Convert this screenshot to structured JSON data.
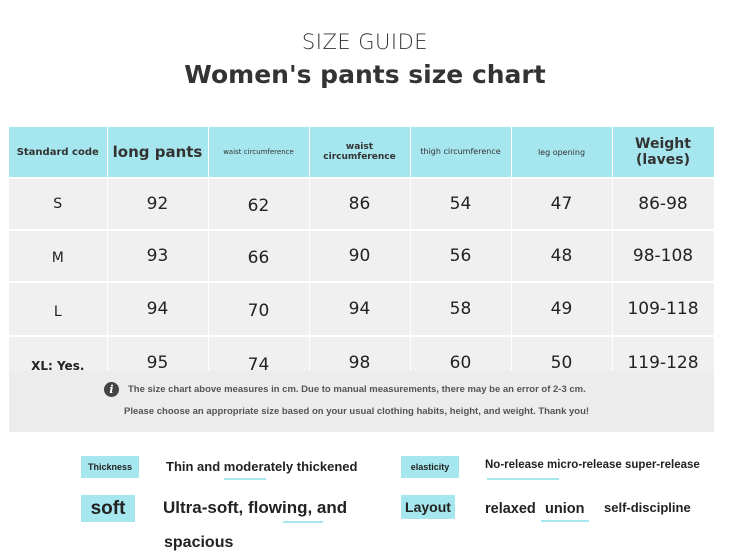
{
  "header": {
    "top_title": "SIZE GUIDE",
    "main_title": "Women's pants size chart"
  },
  "table": {
    "headers": [
      "Standard code",
      "long pants",
      "waist circumference",
      "waist circumference",
      "thigh circumference",
      "leg opening",
      "Weight (laves)"
    ],
    "rows": [
      [
        "S",
        "92",
        "62",
        "86",
        "54",
        "47",
        "86-98"
      ],
      [
        "M",
        "93",
        "66",
        "90",
        "56",
        "48",
        "98-108"
      ],
      [
        "L",
        "94",
        "70",
        "94",
        "58",
        "49",
        "109-118"
      ],
      [
        "XL: Yes.",
        "95",
        "74",
        "98",
        "60",
        "50",
        "119-128"
      ]
    ]
  },
  "notice": {
    "icon_glyph": "i",
    "line1": "The size chart above measures in cm. Due to manual measurements, there may be an error of 2-3 cm.",
    "line2": "Please choose an appropriate size based on your usual clothing habits, height, and weight. Thank you!"
  },
  "attributes": {
    "thickness_label": "Thickness",
    "thickness_value": "Thin and moderately thickened",
    "elasticity_label": "elasticity",
    "elasticity_value": "No-release micro-release super-release",
    "soft_label": "soft",
    "soft_value_line1": "Ultra-soft, flowing, and",
    "soft_value_line2": "spacious",
    "layout_label": "Layout",
    "layout_opt1": "relaxed",
    "layout_opt2": "union",
    "layout_opt3": "self-discipline"
  },
  "colors": {
    "accent": "#a6e6ee",
    "cell_bg": "#f0f0f0",
    "text": "#222222"
  }
}
